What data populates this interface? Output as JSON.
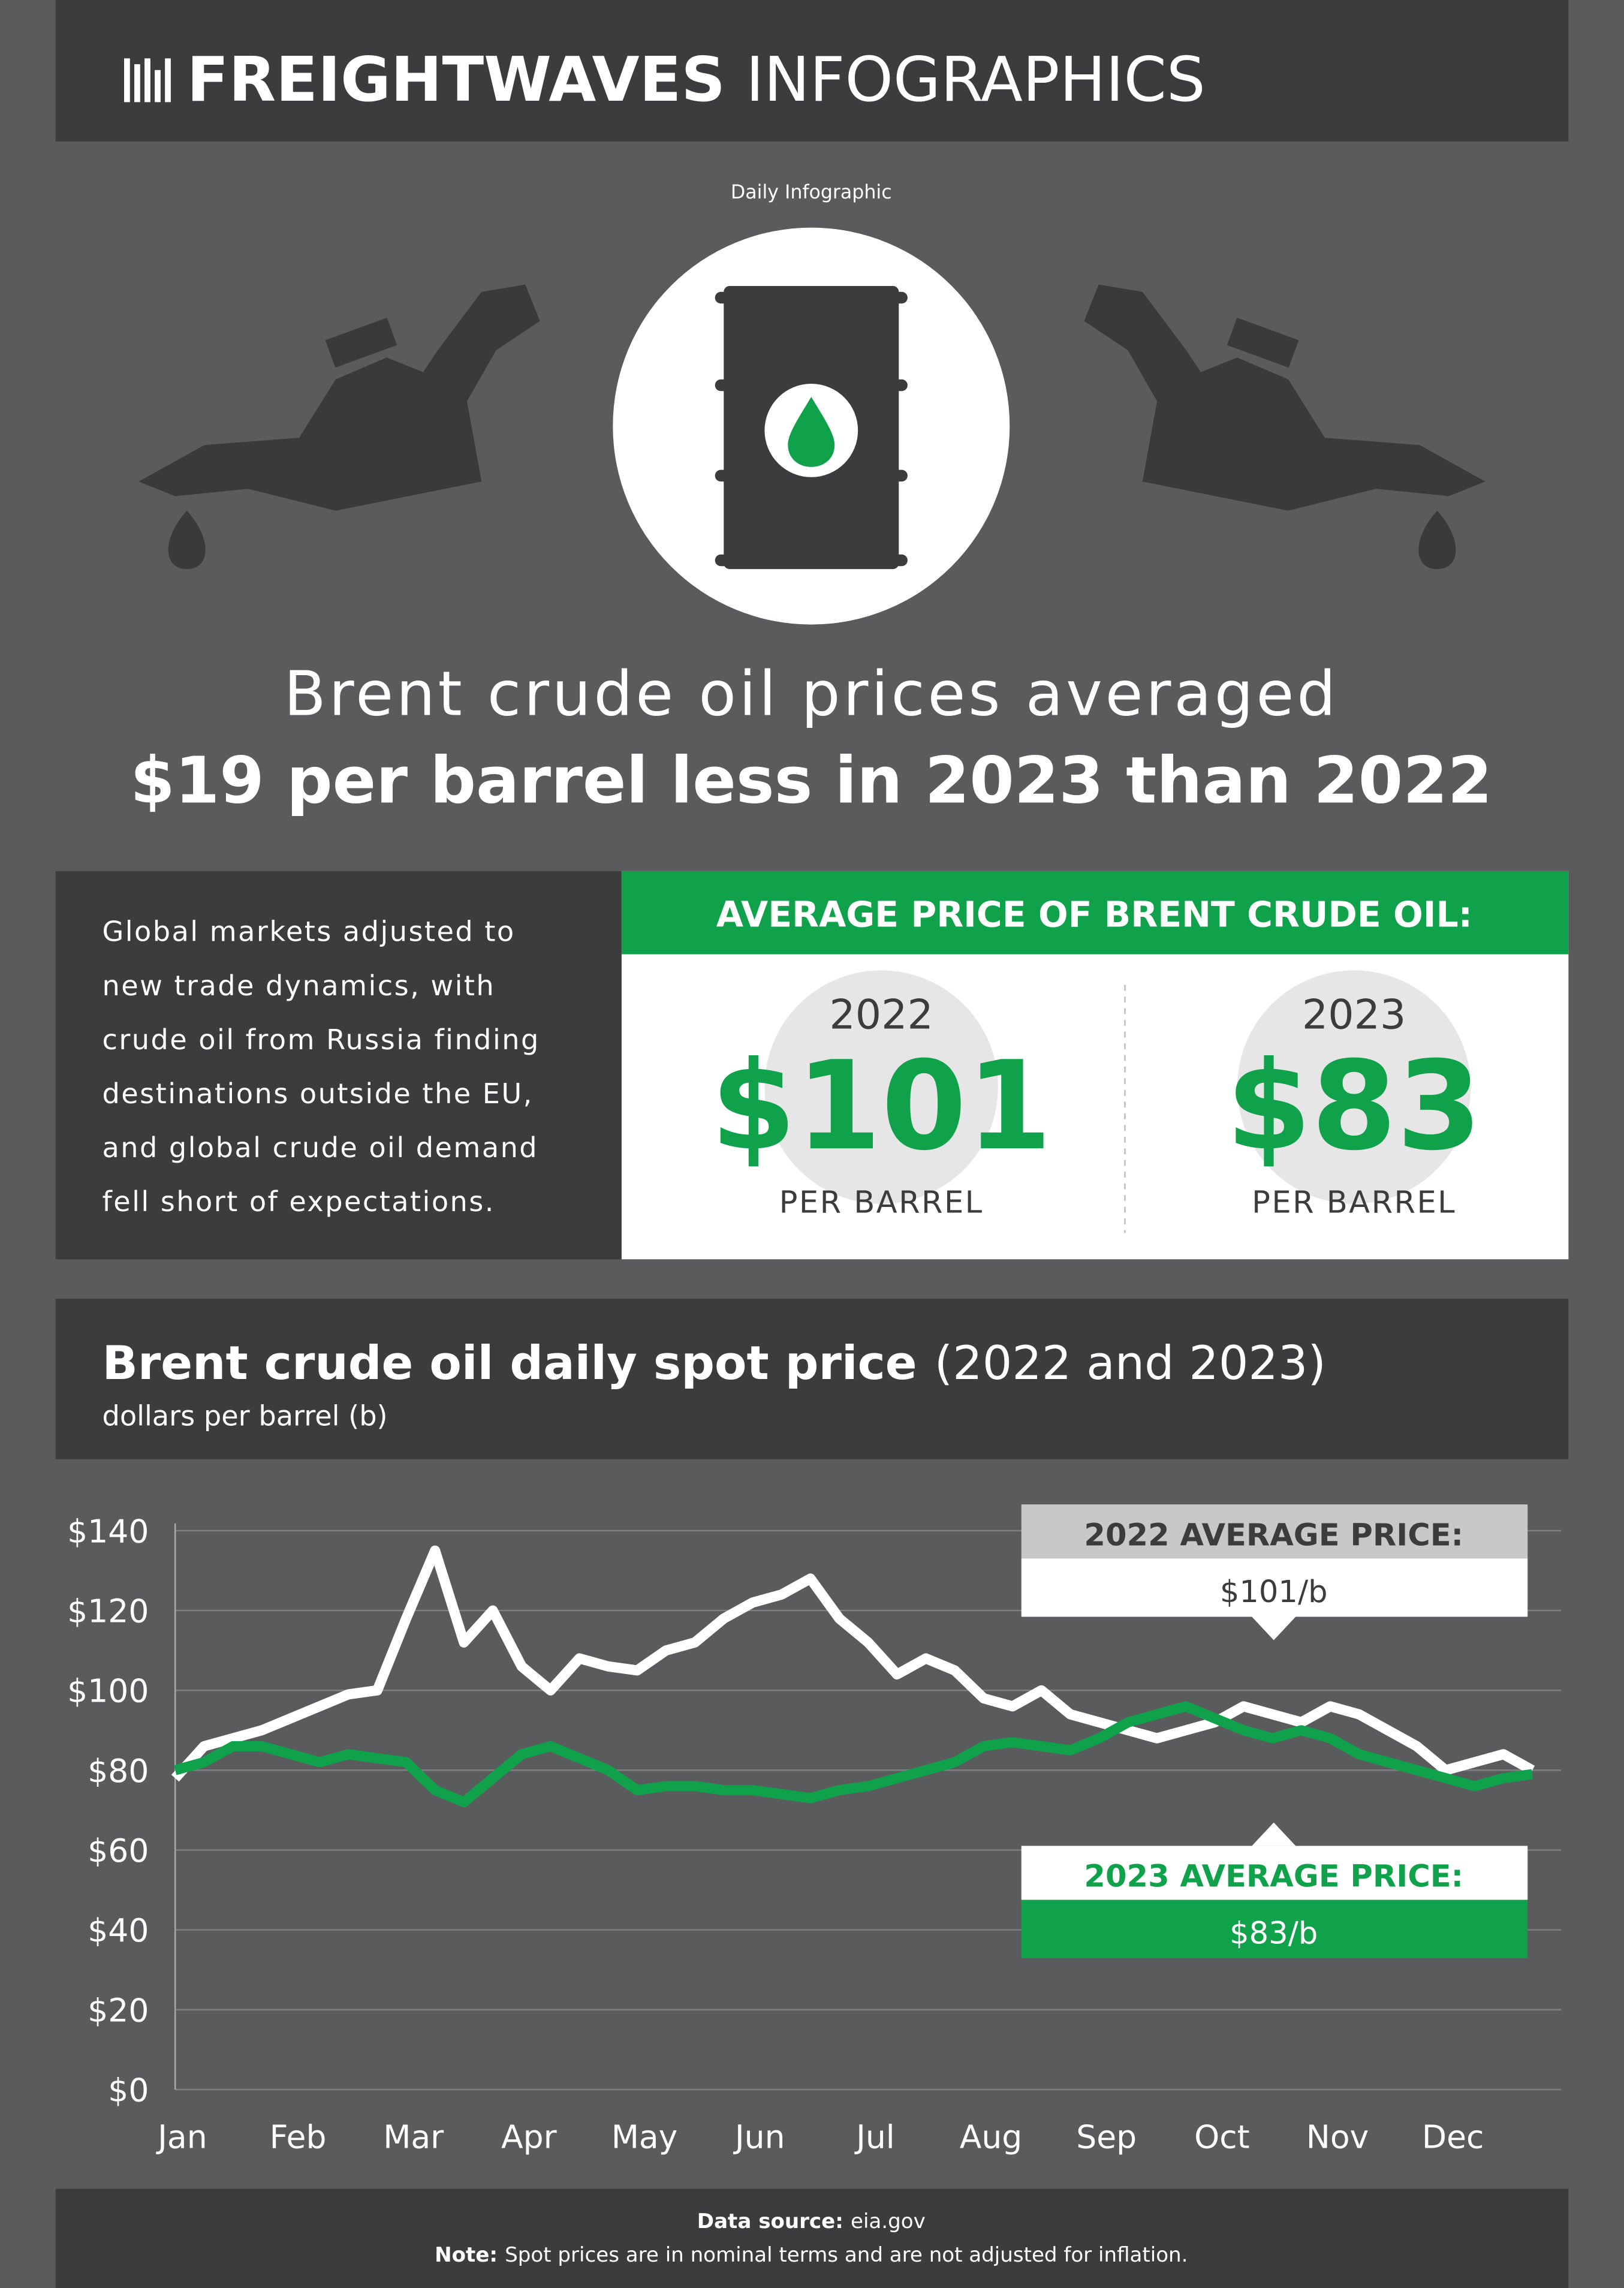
{
  "header": {
    "brand": "FREIGHTWAVES",
    "brand_suffix": "INFOGRAPHICS",
    "tag": "Daily Infographic"
  },
  "headline": {
    "line1": "Brent crude oil prices averaged",
    "line2": "$19 per barrel less in 2023 than 2022"
  },
  "intro": {
    "lines": [
      "Global markets adjusted to",
      "new trade dynamics, with",
      "crude oil from Russia finding",
      "destinations outside the EU,",
      "and global crude oil demand",
      "fell short of expectations."
    ]
  },
  "stats": {
    "title": "AVERAGE PRICE OF BRENT CRUDE OIL:",
    "items": [
      {
        "year": "2022",
        "price": "$101",
        "unit": "PER BARREL"
      },
      {
        "year": "2023",
        "price": "$83",
        "unit": "PER BARREL"
      }
    ]
  },
  "chart_data": {
    "type": "line",
    "title": "Brent crude oil daily spot price",
    "title_suffix": "(2022 and 2023)",
    "subtitle": "dollars per barrel (b)",
    "categories": [
      "Jan",
      null,
      null,
      null,
      "Feb",
      null,
      null,
      null,
      "Mar",
      null,
      null,
      null,
      "Apr",
      null,
      null,
      null,
      "May",
      null,
      null,
      null,
      "Jun",
      null,
      null,
      null,
      "Jul",
      null,
      null,
      null,
      "Aug",
      null,
      null,
      null,
      "Sep",
      null,
      null,
      null,
      "Oct",
      null,
      null,
      null,
      "Nov",
      null,
      null,
      null,
      "Dec",
      null,
      null,
      null
    ],
    "series": [
      {
        "name": "2022",
        "color": "#ffffff",
        "values": [
          78,
          86,
          88,
          90,
          93,
          96,
          99,
          100,
          118,
          135,
          112,
          120,
          106,
          100,
          108,
          106,
          105,
          110,
          112,
          118,
          122,
          124,
          128,
          118,
          112,
          104,
          108,
          105,
          98,
          96,
          100,
          94,
          92,
          90,
          88,
          90,
          92,
          96,
          94,
          92,
          96,
          94,
          90,
          86,
          80,
          82,
          84,
          80
        ]
      },
      {
        "name": "2023",
        "color": "#10a24b",
        "values": [
          80,
          82,
          86,
          86,
          84,
          82,
          84,
          83,
          82,
          75,
          72,
          78,
          84,
          86,
          83,
          80,
          75,
          76,
          76,
          75,
          75,
          74,
          73,
          75,
          76,
          78,
          80,
          82,
          86,
          87,
          86,
          85,
          88,
          92,
          94,
          96,
          93,
          90,
          88,
          90,
          88,
          84,
          82,
          80,
          78,
          76,
          78,
          79
        ]
      }
    ],
    "ylim": [
      0,
      140
    ],
    "yticks": [
      {
        "value": 0,
        "label": "$0"
      },
      {
        "value": 20,
        "label": "$20"
      },
      {
        "value": 40,
        "label": "$40"
      },
      {
        "value": 60,
        "label": "$60"
      },
      {
        "value": 80,
        "label": "$80"
      },
      {
        "value": 100,
        "label": "$100"
      },
      {
        "value": 120,
        "label": "$120"
      },
      {
        "value": 140,
        "label": "$140"
      }
    ],
    "grid": true,
    "annotations": [
      {
        "title": "2022 AVERAGE PRICE:",
        "text": "$101/b"
      },
      {
        "title": "2023 AVERAGE PRICE:",
        "text": "$83/b"
      }
    ]
  },
  "footer": {
    "source_label": "Data source:",
    "source": "eia.gov",
    "note_label": "Note:",
    "note": "Spot prices are in nominal terms and are not adjusted for inflation."
  }
}
